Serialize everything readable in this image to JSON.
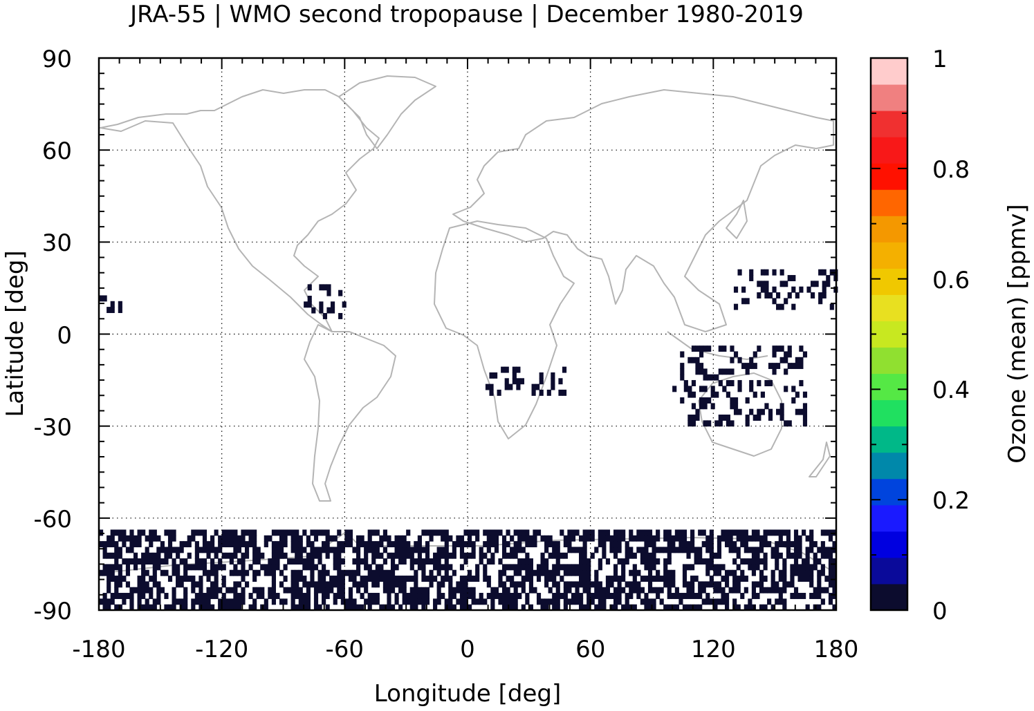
{
  "title": "JRA-55 | WMO second tropopause | December 1980-2019",
  "x_axis": {
    "label": "Longitude [deg]",
    "range": [
      -180,
      180
    ],
    "ticks": [
      -180,
      -120,
      -60,
      0,
      60,
      120,
      180
    ],
    "tick_labels": [
      "-180",
      "-120",
      "-60",
      "0",
      "60",
      "120",
      "180"
    ]
  },
  "y_axis": {
    "label": "Latitude [deg]",
    "range": [
      -90,
      90
    ],
    "ticks": [
      90,
      60,
      30,
      0,
      -30,
      -60,
      -90
    ],
    "tick_labels": [
      "90",
      "60",
      "30",
      "0",
      "-30",
      "-60",
      "-90"
    ]
  },
  "colorbar": {
    "label": "Ozone (mean) [ppmv]",
    "range": [
      0,
      1
    ],
    "tick_labels": [
      "1",
      "0.8",
      "0.6",
      "0.4",
      "0.2",
      "0"
    ],
    "ticks": [
      1,
      0.8,
      0.6,
      0.4,
      0.2,
      0
    ],
    "colors": [
      "#0c0c2e",
      "#0a0a9a",
      "#0000e0",
      "#1a1aff",
      "#0044dd",
      "#0088aa",
      "#00b888",
      "#20e060",
      "#55e845",
      "#90e030",
      "#c8e820",
      "#e8e020",
      "#f0c800",
      "#f4b000",
      "#f49800",
      "#ff6600",
      "#ff1100",
      "#f81818",
      "#f03030",
      "#f08080",
      "#ffcccc"
    ]
  },
  "map": {
    "coastline_color": "#b4b4b4",
    "ozone_patch_color": "#0c0c2e",
    "grid": "dotted"
  },
  "chart_data": {
    "type": "heatmap",
    "title": "JRA-55 | WMO second tropopause | December 1980-2019",
    "xlabel": "Longitude [deg]",
    "ylabel": "Latitude [deg]",
    "xlim": [
      -180,
      180
    ],
    "ylim": [
      -90,
      90
    ],
    "colorbar_label": "Ozone (mean) [ppmv]",
    "clim": [
      0,
      1
    ],
    "grid": true,
    "regions_with_values": [
      {
        "lon": [
          -180,
          180
        ],
        "lat": [
          -90,
          -65
        ],
        "value": 0.02
      },
      {
        "lon": [
          -180,
          -170
        ],
        "lat": [
          7,
          12
        ],
        "value": 0.02
      },
      {
        "lon": [
          -80,
          -60
        ],
        "lat": [
          5,
          15
        ],
        "value": 0.02
      },
      {
        "lon": [
          130,
          180
        ],
        "lat": [
          8,
          20
        ],
        "value": 0.02
      },
      {
        "lon": [
          100,
          165
        ],
        "lat": [
          -30,
          -5
        ],
        "value": 0.02
      },
      {
        "lon": [
          5,
          50
        ],
        "lat": [
          -20,
          -12
        ],
        "value": 0.02
      }
    ]
  }
}
